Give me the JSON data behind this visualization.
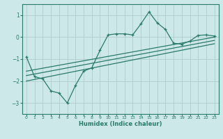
{
  "xlabel": "Humidex (Indice chaleur)",
  "xlim": [
    -0.5,
    23.5
  ],
  "ylim": [
    -3.5,
    1.5
  ],
  "yticks": [
    -3,
    -2,
    -1,
    0,
    1
  ],
  "xticks": [
    0,
    1,
    2,
    3,
    4,
    5,
    6,
    7,
    8,
    9,
    10,
    11,
    12,
    13,
    14,
    15,
    16,
    17,
    18,
    19,
    20,
    21,
    22,
    23
  ],
  "bg_color": "#cce8e8",
  "line_color": "#2a7a6a",
  "grid_color": "#b0cccc",
  "main_line": {
    "x": [
      0,
      1,
      2,
      3,
      4,
      5,
      6,
      7,
      8,
      9,
      10,
      11,
      12,
      13,
      14,
      15,
      16,
      17,
      18,
      19,
      20,
      21,
      22,
      23
    ],
    "y": [
      -0.9,
      -1.8,
      -1.9,
      -2.45,
      -2.55,
      -3.0,
      -2.2,
      -1.55,
      -1.4,
      -0.6,
      0.1,
      0.15,
      0.15,
      0.1,
      0.6,
      1.15,
      0.65,
      0.35,
      -0.28,
      -0.32,
      -0.18,
      0.08,
      0.1,
      0.05
    ]
  },
  "trend_lines": [
    {
      "x": [
        0,
        23
      ],
      "y": [
        -2.0,
        -0.3
      ]
    },
    {
      "x": [
        0,
        23
      ],
      "y": [
        -1.75,
        -0.15
      ]
    },
    {
      "x": [
        0,
        23
      ],
      "y": [
        -1.55,
        0.0
      ]
    }
  ]
}
